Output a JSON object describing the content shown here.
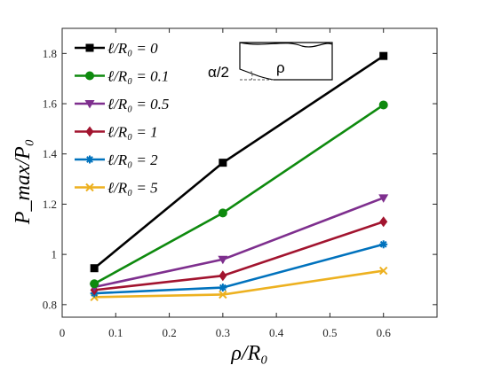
{
  "chart_data": {
    "type": "line",
    "xlabel": "ρ/R₀",
    "ylabel": "P_max/P₀",
    "xlim": [
      0,
      0.7
    ],
    "ylim": [
      0.75,
      1.9
    ],
    "x_ticks": [
      "0",
      "0.1",
      "0.2",
      "0.3",
      "0.4",
      "0.5",
      "0.6"
    ],
    "y_ticks": [
      "0.8",
      "1",
      "1.2",
      "1.4",
      "1.6",
      "1.8"
    ],
    "x": [
      0.06,
      0.3,
      0.6
    ],
    "grid": false,
    "legend_position": "top-left",
    "series": [
      {
        "name": "ℓ/R₀ = 0",
        "color": "#000000",
        "marker": "square",
        "values": [
          0.945,
          1.365,
          1.79
        ]
      },
      {
        "name": "ℓ/R₀ = 0.1",
        "color": "#0E8A0E",
        "marker": "circle",
        "values": [
          0.883,
          1.165,
          1.595
        ]
      },
      {
        "name": "ℓ/R₀ = 0.5",
        "color": "#7E2F8E",
        "marker": "triangle-down",
        "values": [
          0.87,
          0.98,
          1.225
        ]
      },
      {
        "name": "ℓ/R₀ = 1",
        "color": "#A2142F",
        "marker": "diamond",
        "values": [
          0.858,
          0.915,
          1.13
        ]
      },
      {
        "name": "ℓ/R₀ = 2",
        "color": "#0072BD",
        "marker": "asterisk",
        "values": [
          0.845,
          0.868,
          1.04
        ]
      },
      {
        "name": "ℓ/R₀ = 5",
        "color": "#EDB120",
        "marker": "x",
        "values": [
          0.83,
          0.84,
          0.935
        ]
      }
    ],
    "inset": {
      "angle_label": "α/2",
      "radius_label": "ρ"
    }
  }
}
